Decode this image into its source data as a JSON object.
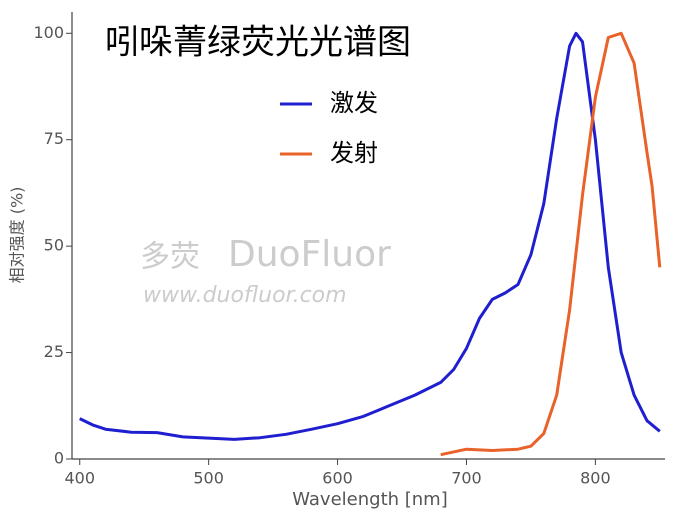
{
  "chart_data": {
    "type": "line",
    "title": "吲哚菁绿荧光光谱图",
    "x_label": "Wavelength [nm]",
    "y_label": "相对强度 (%)",
    "xlim": [
      394,
      854
    ],
    "ylim": [
      0,
      105
    ],
    "xticks": [
      400,
      500,
      600,
      700,
      800
    ],
    "yticks": [
      0,
      25,
      50,
      75,
      100
    ],
    "watermark": {
      "logo": "多荧",
      "brand": "DuoFluor",
      "url": "www.duofluor.com"
    },
    "series": [
      {
        "name": "激发",
        "color": "#1f1fd0",
        "x": [
          400,
          410,
          420,
          440,
          460,
          480,
          500,
          520,
          540,
          560,
          580,
          600,
          620,
          640,
          660,
          680,
          690,
          700,
          710,
          720,
          730,
          740,
          750,
          760,
          770,
          780,
          785,
          790,
          800,
          810,
          820,
          830,
          840,
          850
        ],
        "values": [
          9.5,
          8,
          7,
          6.3,
          6.2,
          5.2,
          4.9,
          4.6,
          5,
          5.8,
          7,
          8.3,
          10,
          12.5,
          15,
          18,
          21,
          26,
          33,
          37.5,
          39,
          41,
          48,
          60,
          80,
          97,
          100,
          98,
          75,
          45,
          25,
          15,
          9,
          6.5
        ]
      },
      {
        "name": "发射",
        "color": "#e8622a",
        "x": [
          680,
          700,
          720,
          740,
          750,
          760,
          770,
          780,
          790,
          800,
          810,
          820,
          830,
          840,
          844,
          850
        ],
        "values": [
          1,
          2.3,
          2,
          2.3,
          3,
          6,
          15,
          35,
          62,
          85,
          99,
          100,
          93,
          72,
          64,
          45
        ]
      }
    ]
  }
}
